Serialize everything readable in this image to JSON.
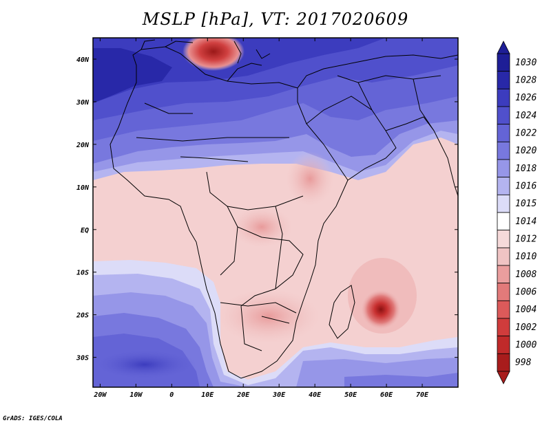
{
  "title": "MSLP [hPa], VT: 2017020609",
  "credit": "GrADS: IGES/COLA",
  "map": {
    "lon_range": [
      -22,
      80
    ],
    "lat_range": [
      -37,
      45
    ],
    "lon_ticks": [
      {
        "value": -20,
        "label": "20W"
      },
      {
        "value": -10,
        "label": "10W"
      },
      {
        "value": 0,
        "label": "0"
      },
      {
        "value": 10,
        "label": "10E"
      },
      {
        "value": 20,
        "label": "20E"
      },
      {
        "value": 30,
        "label": "30E"
      },
      {
        "value": 40,
        "label": "40E"
      },
      {
        "value": 50,
        "label": "50E"
      },
      {
        "value": 60,
        "label": "60E"
      },
      {
        "value": 70,
        "label": "70E"
      }
    ],
    "lat_ticks": [
      {
        "value": 40,
        "label": "40N"
      },
      {
        "value": 30,
        "label": "30N"
      },
      {
        "value": 20,
        "label": "20N"
      },
      {
        "value": 10,
        "label": "10N"
      },
      {
        "value": 0,
        "label": "EQ"
      },
      {
        "value": -10,
        "label": "10S"
      },
      {
        "value": -20,
        "label": "20S"
      },
      {
        "value": -30,
        "label": "30S"
      }
    ]
  },
  "colorbar": {
    "levels": [
      "1030",
      "1028",
      "1026",
      "1024",
      "1022",
      "1020",
      "1018",
      "1016",
      "1015",
      "1014",
      "1012",
      "1010",
      "1008",
      "1006",
      "1004",
      "1002",
      "1000",
      "998"
    ],
    "colors": [
      "#1e1e96",
      "#2828a8",
      "#3c3cbe",
      "#5050cc",
      "#6464d6",
      "#7878de",
      "#9696e8",
      "#b4b4f0",
      "#dcdcf8",
      "#ffffff",
      "#f6dada",
      "#f0c4c4",
      "#ea9e9e",
      "#e27a7a",
      "#dc5a5a",
      "#d03c3c",
      "#c02a2a",
      "#a81c1c"
    ]
  }
}
